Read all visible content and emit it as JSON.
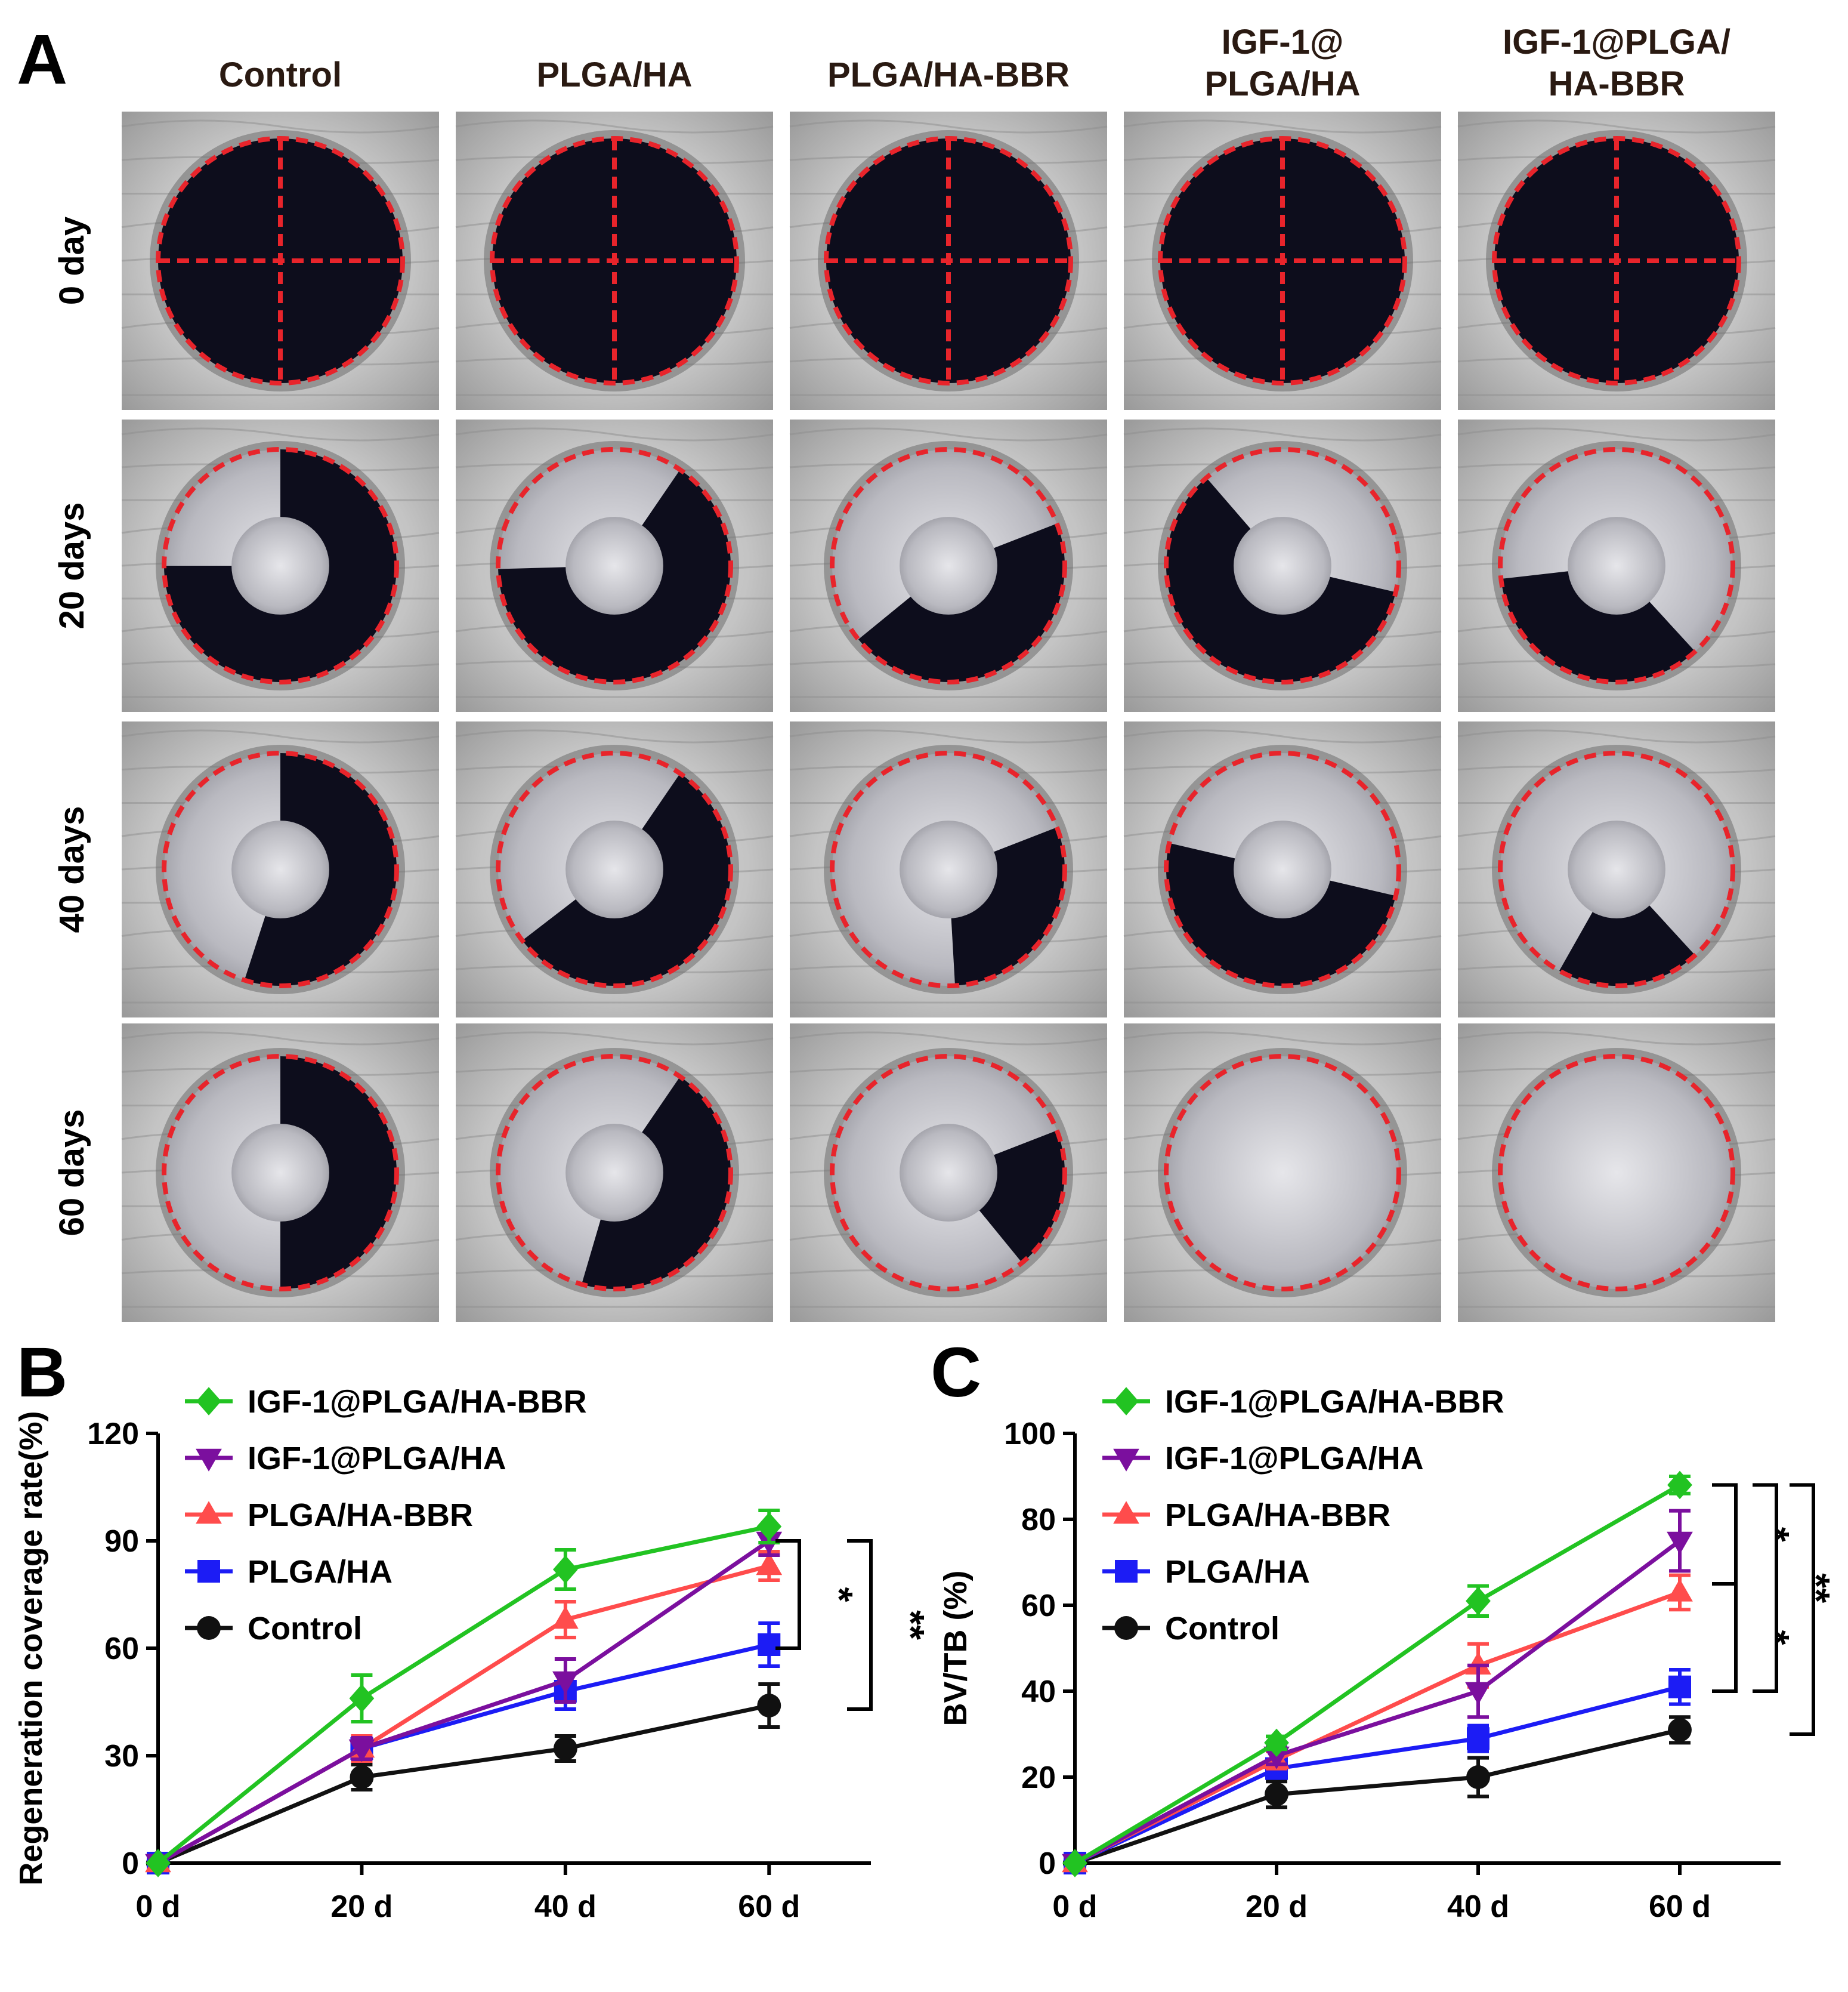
{
  "panel_a": {
    "label": "A",
    "columns": [
      "Control",
      "PLGA/HA",
      "PLGA/HA-BBR",
      "IGF-1@\nPLGA/HA",
      "IGF-1@PLGA/\nHA-BBR"
    ],
    "rows": [
      "0 day",
      "20 days",
      "40 days",
      "60 days"
    ]
  },
  "chart_data": [
    {
      "panel": "B",
      "type": "line",
      "title": "",
      "xlabel": "",
      "ylabel": "Regeneration coverage rate(%)",
      "categories": [
        "0 d",
        "20 d",
        "40 d",
        "60 d"
      ],
      "x": [
        0,
        20,
        40,
        60
      ],
      "xlim": [
        0,
        70
      ],
      "ylim": [
        0,
        120
      ],
      "yticks": [
        0,
        30,
        60,
        90,
        120
      ],
      "legend_position": "top-left",
      "series": [
        {
          "name": "IGF-1@PLGA/HA-BBR",
          "color": "#22c322",
          "marker": "diamond",
          "values": [
            0,
            46,
            82,
            94
          ],
          "errors": [
            0,
            6.5,
            5.5,
            4.5
          ]
        },
        {
          "name": "IGF-1@PLGA/HA",
          "color": "#7b0f9e",
          "marker": "triangle-down",
          "values": [
            0,
            32,
            51,
            90
          ],
          "errors": [
            0,
            3,
            6,
            4
          ]
        },
        {
          "name": "PLGA/HA-BBR",
          "color": "#ff4c4c",
          "marker": "triangle-up",
          "values": [
            0,
            32,
            68,
            83
          ],
          "errors": [
            0,
            3.5,
            5,
            4
          ]
        },
        {
          "name": "PLGA/HA",
          "color": "#1c1cf5",
          "marker": "square",
          "values": [
            0,
            32,
            48,
            61
          ],
          "errors": [
            0,
            3,
            5,
            6
          ]
        },
        {
          "name": "Control",
          "color": "#111111",
          "marker": "circle",
          "values": [
            0,
            24,
            32,
            44
          ],
          "errors": [
            0,
            3.5,
            3.5,
            6
          ]
        }
      ],
      "annotations": [
        {
          "text": "*",
          "from_y": 90,
          "to_y": 60
        },
        {
          "text": "**",
          "from_y": 90,
          "to_y": 43
        }
      ]
    },
    {
      "panel": "C",
      "type": "line",
      "title": "",
      "xlabel": "",
      "ylabel": "BV/TB (%)",
      "categories": [
        "0 d",
        "20 d",
        "40 d",
        "60 d"
      ],
      "x": [
        0,
        20,
        40,
        60
      ],
      "xlim": [
        0,
        70
      ],
      "ylim": [
        0,
        100
      ],
      "yticks": [
        0,
        20,
        40,
        60,
        80,
        100
      ],
      "legend_position": "top-left",
      "series": [
        {
          "name": "IGF-1@PLGA/HA-BBR",
          "color": "#22c322",
          "marker": "diamond",
          "values": [
            0,
            28,
            61,
            88
          ],
          "errors": [
            0,
            1.5,
            3.5,
            2
          ]
        },
        {
          "name": "IGF-1@PLGA/HA",
          "color": "#7b0f9e",
          "marker": "triangle-down",
          "values": [
            0,
            25,
            40,
            75
          ],
          "errors": [
            0,
            2,
            6,
            7
          ]
        },
        {
          "name": "PLGA/HA-BBR",
          "color": "#ff4c4c",
          "marker": "triangle-up",
          "values": [
            0,
            24,
            46,
            63
          ],
          "errors": [
            0,
            2,
            5,
            4
          ]
        },
        {
          "name": "PLGA/HA",
          "color": "#1c1cf5",
          "marker": "square",
          "values": [
            0,
            22,
            29,
            41
          ],
          "errors": [
            0,
            2,
            3,
            4
          ]
        },
        {
          "name": "Control",
          "color": "#111111",
          "marker": "circle",
          "values": [
            0,
            16,
            20,
            31
          ],
          "errors": [
            0,
            3,
            4.5,
            3
          ]
        }
      ],
      "annotations": [
        {
          "text": "*",
          "from_y": 88,
          "to_y": 65
        },
        {
          "text": "*",
          "from_y": 65,
          "to_y": 40
        },
        {
          "text": "**",
          "from_y": 88,
          "to_y": 40
        },
        {
          "text": "**",
          "from_y": 88,
          "to_y": 30
        }
      ]
    }
  ],
  "colors": {
    "outline": "#e8242b",
    "defect": "#0d0d1c",
    "tissue": "#c9c9c9"
  }
}
